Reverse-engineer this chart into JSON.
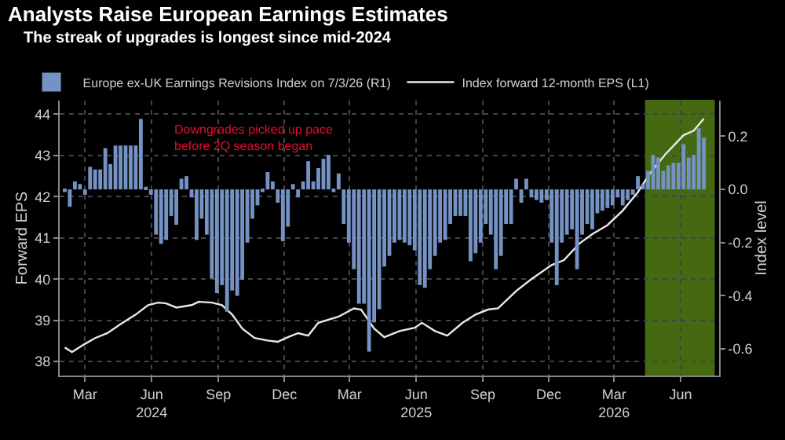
{
  "chart_data": {
    "type": "bar",
    "title": "Analysts Raise European Earnings Estimates",
    "subtitle": "The streak of upgrades is longest since mid-2024",
    "ylabel": "Forward EPS",
    "y2label": "Index level",
    "x": [
      "2024-02-02",
      "2024-02-09",
      "2024-02-16",
      "2024-02-23",
      "2024-03-01",
      "2024-03-08",
      "2024-03-15",
      "2024-03-22",
      "2024-03-29",
      "2024-04-05",
      "2024-04-12",
      "2024-04-19",
      "2024-04-26",
      "2024-05-03",
      "2024-05-10",
      "2024-05-17",
      "2024-05-24",
      "2024-05-31",
      "2024-06-07",
      "2024-06-14",
      "2024-06-21",
      "2024-06-28",
      "2024-07-05",
      "2024-07-12",
      "2024-07-19",
      "2024-07-26",
      "2024-08-02",
      "2024-08-09",
      "2024-08-16",
      "2024-08-23",
      "2024-08-30",
      "2024-09-06",
      "2024-09-13",
      "2024-09-20",
      "2024-09-27",
      "2024-10-04",
      "2024-10-11",
      "2024-10-18",
      "2024-10-25",
      "2024-11-01",
      "2024-11-08",
      "2024-11-15",
      "2024-11-22",
      "2024-11-29",
      "2024-12-06",
      "2024-12-13",
      "2024-12-20",
      "2024-12-27",
      "2025-01-03",
      "2025-01-10",
      "2025-01-17",
      "2025-01-24",
      "2025-01-31",
      "2025-02-07",
      "2025-02-14",
      "2025-02-21",
      "2025-02-28",
      "2025-03-07",
      "2025-03-14",
      "2025-03-21",
      "2025-03-28",
      "2025-04-04",
      "2025-04-11",
      "2025-04-18",
      "2025-04-25",
      "2025-05-02",
      "2025-05-09",
      "2025-05-16",
      "2025-05-23",
      "2025-05-30",
      "2025-06-06",
      "2025-06-13",
      "2025-06-20",
      "2025-06-27",
      "2025-07-04",
      "2025-07-11",
      "2025-07-18",
      "2025-07-25",
      "2025-08-01",
      "2025-08-08",
      "2025-08-15",
      "2025-08-22",
      "2025-08-29",
      "2025-09-05",
      "2025-09-12",
      "2025-09-19",
      "2025-09-26",
      "2025-10-03",
      "2025-10-10",
      "2025-10-17",
      "2025-10-24",
      "2025-10-31",
      "2025-11-07",
      "2025-11-14",
      "2025-11-21",
      "2025-11-28",
      "2025-12-05",
      "2025-12-12",
      "2025-12-19",
      "2025-12-26",
      "2026-01-02",
      "2026-01-09",
      "2026-01-16",
      "2026-01-23",
      "2026-01-30",
      "2026-02-06",
      "2026-02-13",
      "2026-02-20",
      "2026-02-27",
      "2026-03-06",
      "2026-03-13",
      "2026-03-20",
      "2026-03-27",
      "2026-04-03",
      "2026-04-10",
      "2026-04-17",
      "2026-04-24",
      "2026-05-01",
      "2026-05-08",
      "2026-05-15",
      "2026-05-22",
      "2026-05-29",
      "2026-06-05",
      "2026-06-12",
      "2026-06-19",
      "2026-06-26",
      "2026-07-03"
    ],
    "series": [
      {
        "name": "Europe ex-UK Earnings Revisions Index on 7/3/26 (R1)",
        "axis": "y2",
        "color": "#7592c4",
        "values": [
          -0.01,
          -0.065,
          0.03,
          0.02,
          -0.02,
          0.085,
          0.075,
          0.075,
          0.155,
          0.095,
          0.165,
          0.165,
          0.165,
          0.165,
          0.165,
          0.265,
          0.01,
          -0.02,
          -0.17,
          -0.205,
          -0.19,
          -0.1,
          -0.133,
          0.04,
          0.05,
          -0.03,
          -0.19,
          -0.11,
          -0.17,
          -0.335,
          -0.39,
          -0.36,
          -0.46,
          -0.38,
          -0.4,
          -0.34,
          -0.2,
          -0.11,
          -0.06,
          -0.01,
          0.065,
          0.03,
          -0.05,
          -0.195,
          -0.14,
          0.02,
          -0.03,
          0.03,
          0.106,
          0.03,
          0.08,
          0.115,
          0.13,
          -0.01,
          0.06,
          -0.13,
          -0.2,
          -0.3,
          -0.43,
          -0.43,
          -0.61,
          -0.5,
          -0.45,
          -0.29,
          -0.25,
          -0.2,
          -0.19,
          -0.2,
          -0.21,
          -0.23,
          -0.36,
          -0.37,
          -0.3,
          -0.25,
          -0.2,
          -0.19,
          -0.13,
          -0.1,
          -0.1,
          -0.1,
          -0.27,
          -0.24,
          -0.2,
          -0.13,
          -0.17,
          -0.3,
          -0.25,
          -0.13,
          -0.13,
          0.04,
          -0.05,
          0.04,
          -0.03,
          -0.04,
          -0.05,
          -0.04,
          -0.2,
          -0.36,
          -0.2,
          -0.17,
          -0.15,
          -0.3,
          -0.17,
          -0.13,
          -0.15,
          -0.09,
          -0.08,
          -0.07,
          -0.06,
          -0.03,
          -0.06,
          -0.04,
          -0.02,
          0.05,
          0.02,
          0.07,
          0.13,
          0.12,
          0.07,
          0.09,
          0.1,
          0.1,
          0.17,
          0.12,
          0.13,
          0.23,
          0.195
        ]
      },
      {
        "name": "Index forward 12-month EPS (L1)",
        "type": "line",
        "color": "#e8e8e8",
        "x": [
          "2024-02-02",
          "2024-02-12",
          "2024-03-01",
          "2024-03-15",
          "2024-04-01",
          "2024-04-19",
          "2024-05-10",
          "2024-05-27",
          "2024-06-10",
          "2024-06-21",
          "2024-07-05",
          "2024-07-26",
          "2024-08-05",
          "2024-08-23",
          "2024-09-06",
          "2024-09-20",
          "2024-10-04",
          "2024-10-21",
          "2024-11-08",
          "2024-11-22",
          "2024-12-06",
          "2024-12-20",
          "2025-01-03",
          "2025-01-17",
          "2025-02-14",
          "2025-03-07",
          "2025-03-17",
          "2025-04-04",
          "2025-04-18",
          "2025-05-09",
          "2025-05-30",
          "2025-06-09",
          "2025-06-27",
          "2025-07-14",
          "2025-08-04",
          "2025-08-22",
          "2025-09-08",
          "2025-09-22",
          "2025-10-17",
          "2025-11-07",
          "2025-12-05",
          "2025-12-22",
          "2026-01-12",
          "2026-01-30",
          "2026-02-20",
          "2026-03-13",
          "2026-04-03",
          "2026-04-20",
          "2026-05-11",
          "2026-06-05",
          "2026-06-19",
          "2026-07-03"
        ],
        "values": [
          38.34,
          38.23,
          38.43,
          38.57,
          38.69,
          38.91,
          39.14,
          39.37,
          39.43,
          39.41,
          39.31,
          39.37,
          39.45,
          39.43,
          39.37,
          39.14,
          38.8,
          38.57,
          38.51,
          38.48,
          38.59,
          38.69,
          38.63,
          38.94,
          39.09,
          39.29,
          39.26,
          38.8,
          38.59,
          38.74,
          38.82,
          38.94,
          38.74,
          38.63,
          38.94,
          39.14,
          39.26,
          39.29,
          39.71,
          40.0,
          40.34,
          40.46,
          40.86,
          41.09,
          41.31,
          41.66,
          42.11,
          42.57,
          43.03,
          43.49,
          43.6,
          43.89
        ]
      }
    ],
    "xlim": [
      "2024-01-26",
      "2026-07-24"
    ],
    "xticks": [
      {
        "value": "2024-03-01",
        "label": "Mar"
      },
      {
        "value": "2024-06-01",
        "label": "Jun\n2024"
      },
      {
        "value": "2024-09-01",
        "label": "Sep"
      },
      {
        "value": "2024-12-01",
        "label": "Dec"
      },
      {
        "value": "2025-03-01",
        "label": "Mar"
      },
      {
        "value": "2025-06-01",
        "label": "Jun\n2025"
      },
      {
        "value": "2025-09-01",
        "label": "Sep"
      },
      {
        "value": "2025-12-01",
        "label": "Dec"
      },
      {
        "value": "2026-03-01",
        "label": "Mar\n2026"
      },
      {
        "value": "2026-06-01",
        "label": "Jun"
      }
    ],
    "ylim": [
      37.66,
      44.33
    ],
    "yticks": [
      38,
      39,
      40,
      41,
      42,
      43,
      44
    ],
    "y2lim": [
      -0.7,
      0.334
    ],
    "y2ticks": [
      -0.6,
      -0.4,
      -0.2,
      {
        "value": 0,
        "label": "0.0"
      },
      0.2
    ],
    "bands": [
      {
        "axis": "x",
        "from": "2026-04-14",
        "to": "2026-07-17",
        "color": "#7fbf1f"
      }
    ],
    "annotations": [
      "Downgrades picked up pace\nbefore 2Q season began"
    ],
    "grid": true,
    "legend": "top left"
  }
}
